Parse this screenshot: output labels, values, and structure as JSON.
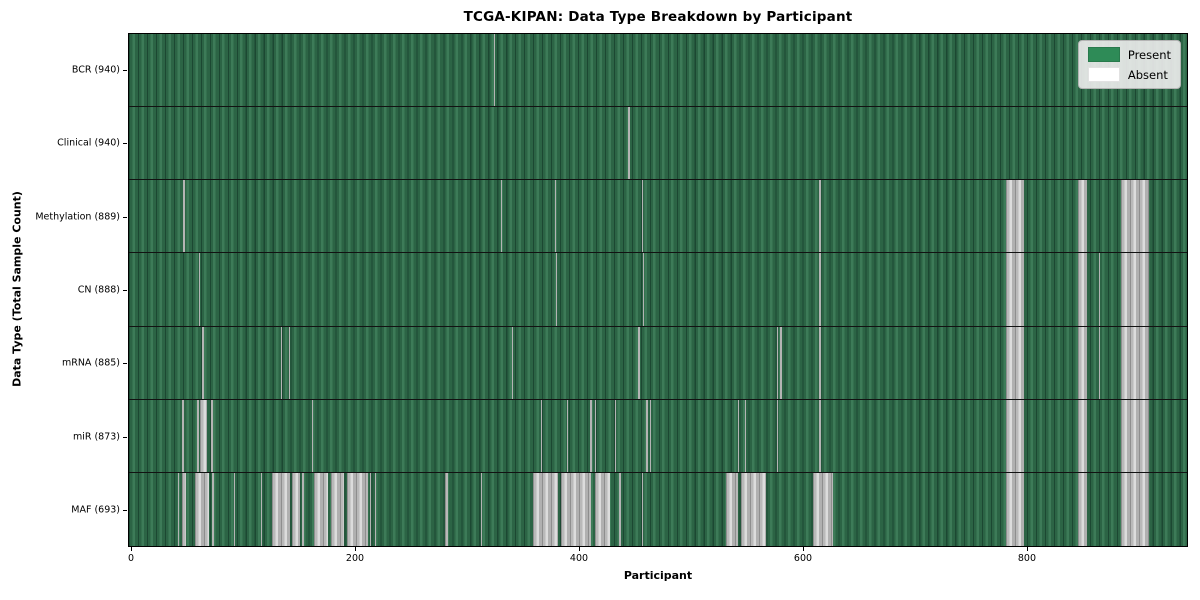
{
  "title": "TCGA-KIPAN: Data Type Breakdown by Participant",
  "colors": {
    "present": "#2e8b57",
    "absent": "#ffffff",
    "absent_rendered": "#b9b9b9",
    "row_separator": "#121212",
    "legend_background": "#eaeaea"
  },
  "chart_data": {
    "type": "heatmap",
    "title": "TCGA-KIPAN: Data Type Breakdown by Participant",
    "xlabel": "Participant",
    "ylabel": "Data Type (Total Sample Count)",
    "x_ticks": [
      0,
      200,
      400,
      600,
      800
    ],
    "xlim": [
      -2.7,
      943.8
    ],
    "n_participants": 940,
    "grid": "row-separators-only",
    "legend_position": "upper right",
    "legend": [
      {
        "label": "Present",
        "color": "#2e8b57"
      },
      {
        "label": "Absent",
        "color": "#ffffff"
      }
    ],
    "rows": [
      {
        "data_type": "BCR",
        "label": "BCR (940)",
        "sample_count": 940,
        "absent_ranges": [
          [
            324,
            325
          ]
        ]
      },
      {
        "data_type": "Clinical",
        "label": "Clinical (940)",
        "sample_count": 940,
        "absent_ranges": [
          [
            444,
            445
          ]
        ]
      },
      {
        "data_type": "Methylation",
        "label": "Methylation (889)",
        "sample_count": 889,
        "absent_ranges": [
          [
            46,
            47
          ],
          [
            330,
            331
          ],
          [
            378,
            379
          ],
          [
            456,
            457
          ],
          [
            615,
            616
          ],
          [
            782,
            798
          ],
          [
            846,
            854
          ],
          [
            885,
            910
          ]
        ]
      },
      {
        "data_type": "CN",
        "label": "CN (888)",
        "sample_count": 888,
        "absent_ranges": [
          [
            60,
            61
          ],
          [
            379,
            380
          ],
          [
            457,
            458
          ],
          [
            615,
            616
          ],
          [
            782,
            798
          ],
          [
            846,
            854
          ],
          [
            865,
            866
          ],
          [
            885,
            910
          ]
        ]
      },
      {
        "data_type": "mRNA",
        "label": "mRNA (885)",
        "sample_count": 885,
        "absent_ranges": [
          [
            63,
            64
          ],
          [
            133,
            134
          ],
          [
            140,
            141
          ],
          [
            340,
            341
          ],
          [
            453,
            454
          ],
          [
            577,
            578
          ],
          [
            580,
            581
          ],
          [
            615,
            616
          ],
          [
            782,
            798
          ],
          [
            846,
            854
          ],
          [
            865,
            866
          ],
          [
            885,
            910
          ]
        ]
      },
      {
        "data_type": "miR",
        "label": "miR (873)",
        "sample_count": 873,
        "absent_ranges": [
          [
            45,
            46
          ],
          [
            58,
            60
          ],
          [
            61,
            67
          ],
          [
            71,
            72
          ],
          [
            161,
            162
          ],
          [
            366,
            367
          ],
          [
            389,
            390
          ],
          [
            410,
            411
          ],
          [
            414,
            415
          ],
          [
            432,
            433
          ],
          [
            460,
            461
          ],
          [
            463,
            464
          ],
          [
            542,
            543
          ],
          [
            548,
            549
          ],
          [
            577,
            578
          ],
          [
            615,
            616
          ],
          [
            782,
            798
          ],
          [
            846,
            854
          ],
          [
            885,
            910
          ]
        ]
      },
      {
        "data_type": "MAF",
        "label": "MAF (693)",
        "sample_count": 693,
        "absent_ranges": [
          [
            41,
            42
          ],
          [
            45,
            48
          ],
          [
            56,
            69
          ],
          [
            72,
            73
          ],
          [
            91,
            92
          ],
          [
            115,
            116
          ],
          [
            125,
            141
          ],
          [
            143,
            150
          ],
          [
            152,
            154
          ],
          [
            163,
            175
          ],
          [
            178,
            190
          ],
          [
            192,
            211
          ],
          [
            213,
            214
          ],
          [
            217,
            218
          ],
          [
            280,
            283
          ],
          [
            312,
            313
          ],
          [
            359,
            381
          ],
          [
            384,
            411
          ],
          [
            414,
            428
          ],
          [
            436,
            437
          ],
          [
            456,
            457
          ],
          [
            531,
            542
          ],
          [
            545,
            567
          ],
          [
            609,
            627
          ],
          [
            782,
            798
          ],
          [
            846,
            854
          ],
          [
            885,
            910
          ]
        ]
      }
    ]
  }
}
